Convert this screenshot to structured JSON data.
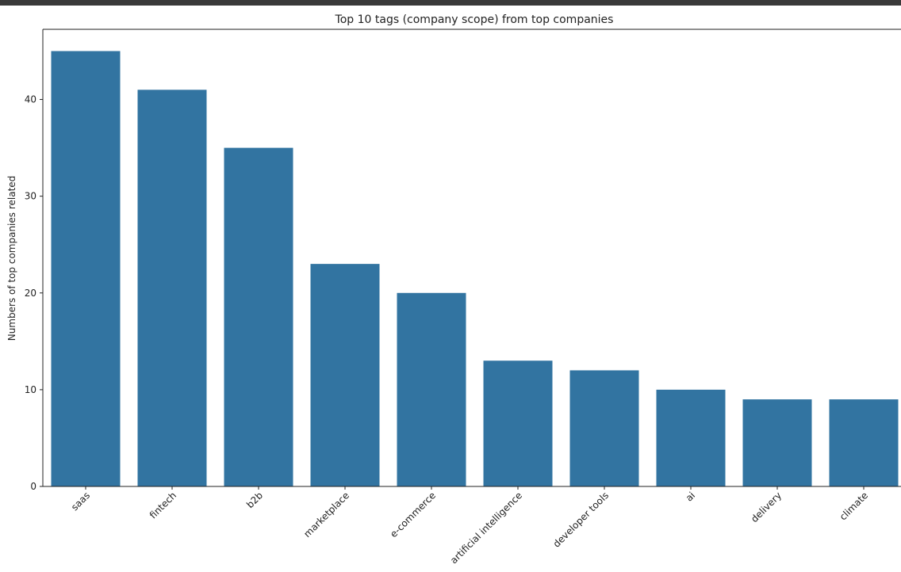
{
  "chart_data": {
    "type": "bar",
    "title": "Top 10 tags (company scope) from top companies",
    "xlabel": "",
    "ylabel": "Numbers of top companies related",
    "categories": [
      "saas",
      "fintech",
      "b2b",
      "marketplace",
      "e-commerce",
      "artificial intelligence",
      "developer tools",
      "ai",
      "delivery",
      "climate"
    ],
    "values": [
      45,
      41,
      35,
      23,
      20,
      13,
      12,
      10,
      9,
      9
    ],
    "ylim": [
      0,
      47.25
    ],
    "yticks": [
      0,
      10,
      20,
      30,
      40
    ],
    "bar_color": "#3274a1",
    "grid": false,
    "x_tick_rotation": 45
  }
}
